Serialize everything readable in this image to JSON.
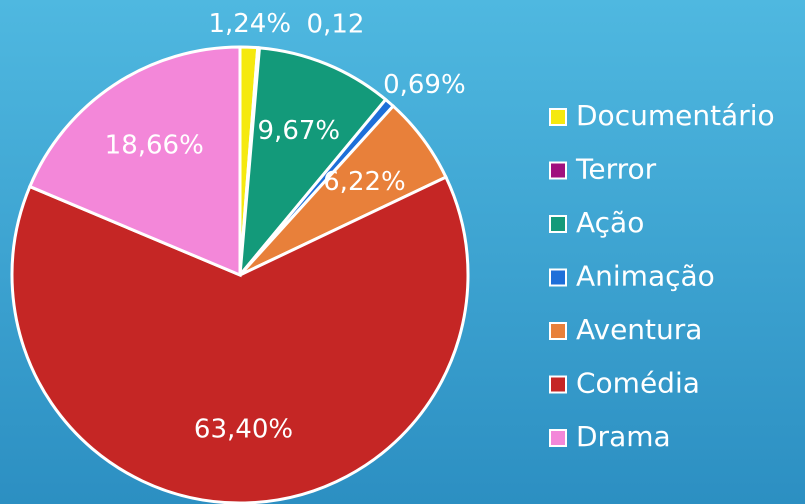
{
  "chart_data": {
    "type": "pie",
    "categories": [
      "Documentário",
      "Terror",
      "Ação",
      "Animação",
      "Aventura",
      "Comédia",
      "Drama"
    ],
    "values": [
      1.24,
      0.12,
      9.67,
      0.69,
      6.22,
      63.4,
      18.66
    ],
    "value_labels": [
      "1,24%",
      "0,12",
      "9,67%",
      "0,69%",
      "6,22%",
      "63,40%",
      "18,66%"
    ],
    "colors": [
      "#f5e90f",
      "#a0107e",
      "#139a7a",
      "#1e6fd9",
      "#e8803a",
      "#c52625",
      "#f387d9"
    ],
    "legend": "right"
  }
}
